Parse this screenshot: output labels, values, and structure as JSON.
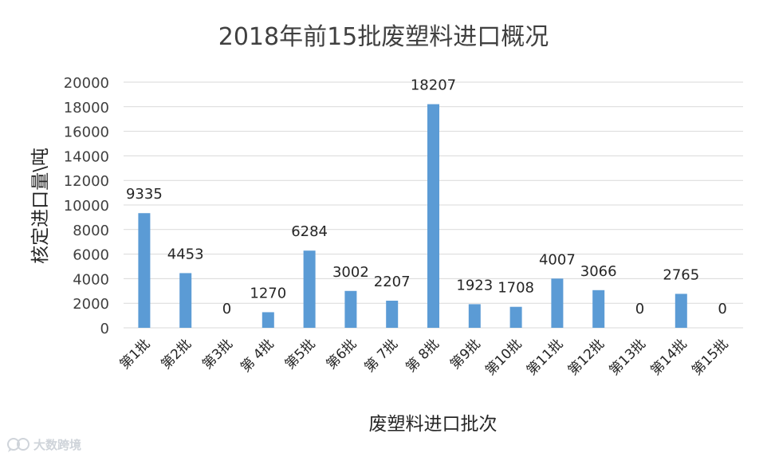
{
  "chart_data": {
    "type": "bar",
    "title": "2018年前15批废塑料进口概况",
    "xlabel": "废塑料进口批次",
    "ylabel": "核定进口量\\吨",
    "ylim": [
      0,
      20000
    ],
    "yticks": [
      0,
      2000,
      4000,
      6000,
      8000,
      10000,
      12000,
      14000,
      16000,
      18000,
      20000
    ],
    "grid": true,
    "legend": "none",
    "bar_color": "#5b9bd5",
    "categories": [
      "第1批",
      "第2批",
      "第3批",
      "第 4批",
      "第5批",
      "第6批",
      "第 7批",
      "第 8批",
      "第9批",
      "第10批",
      "第11批",
      "第12批",
      "第13批",
      "第14批",
      "第15批"
    ],
    "values": [
      9335,
      4453,
      0,
      1270,
      6284,
      3002,
      2207,
      18207,
      1923,
      1708,
      4007,
      3066,
      0,
      2765,
      0
    ],
    "data_labels": [
      "9335",
      "4453",
      "0",
      "1270",
      "6284",
      "3002",
      "2207",
      "18207",
      "1923",
      "1708",
      "4007",
      "3066",
      "0",
      "2765",
      "0"
    ]
  },
  "watermark": {
    "text": "大数跨境",
    "logo_icon": "speech-bubble-icon"
  }
}
